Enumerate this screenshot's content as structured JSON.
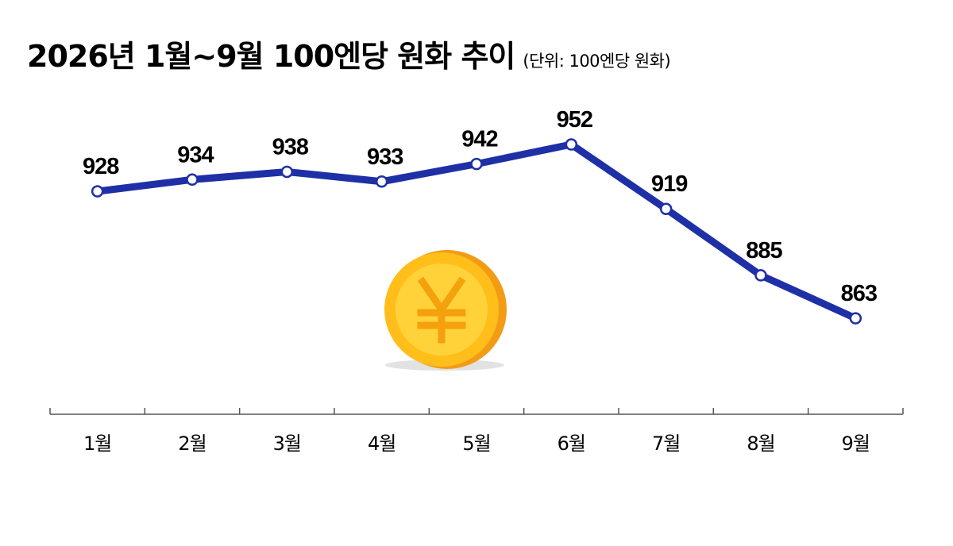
{
  "header": {
    "title": "2026년 1월~9월 100엔당 원화 추이",
    "unit": "(단위: 100엔당 원화)"
  },
  "colors": {
    "line": "#1f2fa6",
    "marker_fill": "#ffffff",
    "axis": "#555555",
    "coin_outer": "#f2a51a",
    "coin_inner": "#ffc61e",
    "coin_symbol": "#f7a30f"
  },
  "icon": "yen-coin-icon",
  "chart_data": {
    "type": "line",
    "categories": [
      "1월",
      "2월",
      "3월",
      "4월",
      "5월",
      "6월",
      "7월",
      "8월",
      "9월"
    ],
    "values": [
      928,
      934,
      938,
      933,
      942,
      952,
      919,
      885,
      863
    ],
    "value_labels": [
      "928",
      "934",
      "938",
      "933",
      "942",
      "952",
      "919",
      "885",
      "863"
    ],
    "ylim": [
      835,
      965
    ],
    "grid": false,
    "legend": "none"
  }
}
